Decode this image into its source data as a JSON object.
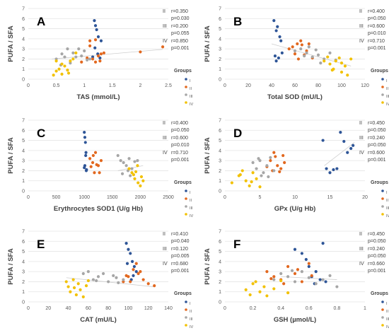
{
  "figure": {
    "colors": {
      "I": "#2e5597",
      "II": "#e2681f",
      "III": "#a6a6a6",
      "IV": "#f2c100"
    },
    "legend_title": "Groups"
  },
  "chart_data": [
    {
      "type": "scatter",
      "letter": "A",
      "xlabel": "TAS (mmol/L)",
      "ylabel": "PUFA / SFA",
      "xlim": [
        0,
        2.5
      ],
      "xticks": [
        0,
        0.5,
        1,
        1.5,
        2,
        2.5
      ],
      "ylim": [
        0,
        7
      ],
      "yticks": [
        0,
        1,
        2,
        3,
        4,
        5,
        6,
        7
      ],
      "stats": [
        {
          "group": "II",
          "r": "r=0.350",
          "p": "p=0.030"
        },
        {
          "group": "III",
          "r": "r=0.200",
          "p": "p=0.055"
        },
        {
          "group": "IV",
          "r": "r=0.850",
          "p": "p=0.001"
        }
      ],
      "trend": [
        [
          0.42,
          2.0
        ],
        [
          2.4,
          2.95
        ]
      ],
      "series": [
        {
          "name": "I",
          "x": [
            1.18,
            1.2,
            1.22,
            1.25,
            1.15,
            1.28,
            1.3,
            1.19,
            1.24
          ],
          "y": [
            5.8,
            5.3,
            4.9,
            4.2,
            2.2,
            2.1,
            3.8,
            3.1,
            2.5
          ]
        },
        {
          "name": "II",
          "x": [
            0.95,
            1.05,
            1.1,
            1.15,
            1.2,
            1.25,
            1.3,
            1.35,
            1.1,
            1.2,
            2.0,
            2.4,
            1.28
          ],
          "y": [
            1.7,
            2.1,
            3.8,
            2.0,
            1.7,
            2.3,
            2.5,
            2.6,
            3.3,
            3.9,
            2.7,
            3.2,
            1.8
          ]
        },
        {
          "name": "III",
          "x": [
            0.5,
            0.6,
            0.65,
            0.7,
            0.8,
            0.85,
            0.9,
            1.0,
            1.05,
            0.75,
            0.95,
            1.1,
            0.58
          ],
          "y": [
            2.0,
            2.5,
            2.2,
            3.0,
            2.6,
            2.2,
            3.0,
            2.8,
            1.9,
            1.6,
            2.3,
            2.0,
            1.4
          ]
        },
        {
          "name": "IV",
          "x": [
            0.45,
            0.5,
            0.55,
            0.6,
            0.65,
            0.7,
            0.75,
            0.8,
            0.6,
            0.5,
            0.72,
            0.85
          ],
          "y": [
            0.4,
            0.8,
            1.0,
            0.5,
            1.3,
            0.9,
            1.8,
            2.0,
            1.5,
            1.8,
            0.6,
            2.6
          ]
        }
      ]
    },
    {
      "type": "scatter",
      "letter": "B",
      "xlabel": "Total SOD (mU/L)",
      "ylabel": "PUFA / SFA",
      "xlim": [
        0,
        120
      ],
      "xticks": [
        0,
        20,
        40,
        60,
        80,
        100,
        120
      ],
      "ylim": [
        0,
        7
      ],
      "yticks": [
        0,
        1,
        2,
        3,
        4,
        5,
        6,
        7
      ],
      "stats": [
        {
          "group": "II",
          "r": "r=0.400",
          "p": "p=0.050"
        },
        {
          "group": "III",
          "r": "r=0.600",
          "p": "p=0.010"
        },
        {
          "group": "IV",
          "r": "r=0.710",
          "p": "p=0.001"
        }
      ],
      "trend": [
        [
          40,
          3.5
        ],
        [
          108,
          1.3
        ]
      ],
      "series": [
        {
          "name": "I",
          "x": [
            42,
            45,
            44,
            47,
            48,
            43,
            46,
            44,
            49
          ],
          "y": [
            5.8,
            5.2,
            4.8,
            4.2,
            3.8,
            2.3,
            2.1,
            1.8,
            2.6
          ]
        },
        {
          "name": "II",
          "x": [
            55,
            60,
            62,
            65,
            68,
            70,
            58,
            63,
            72,
            75,
            66
          ],
          "y": [
            3.0,
            2.5,
            3.5,
            3.8,
            2.4,
            2.8,
            3.2,
            2.0,
            3.5,
            2.1,
            3.4
          ]
        },
        {
          "name": "III",
          "x": [
            60,
            65,
            70,
            72,
            75,
            78,
            80,
            85,
            90,
            95,
            68,
            82
          ],
          "y": [
            2.8,
            3.0,
            2.6,
            3.2,
            2.2,
            2.9,
            2.4,
            2.0,
            2.6,
            1.9,
            2.3,
            1.6
          ]
        },
        {
          "name": "IV",
          "x": [
            85,
            88,
            90,
            93,
            95,
            98,
            100,
            103,
            105,
            108,
            92,
            100
          ],
          "y": [
            1.8,
            2.2,
            1.5,
            1.0,
            1.8,
            2.1,
            0.7,
            1.3,
            0.4,
            2.0,
            0.9,
            1.6
          ]
        }
      ]
    },
    {
      "type": "scatter",
      "letter": "C",
      "xlabel": "Erythrocytes SOD1 (U/g Hb)",
      "ylabel": "PUFA / SFA",
      "xlim": [
        0,
        2500
      ],
      "xticks": [
        0,
        500,
        1000,
        1500,
        2000,
        2500
      ],
      "ylim": [
        0,
        7
      ],
      "yticks": [
        0,
        1,
        2,
        3,
        4,
        5,
        6,
        7
      ],
      "stats": [
        {
          "group": "II",
          "r": "r=0.400",
          "p": "p=0.050"
        },
        {
          "group": "III",
          "r": "r=0.600",
          "p": "p=0.010"
        },
        {
          "group": "IV",
          "r": "r=0.710",
          "p": "p=0.001"
        }
      ],
      "trend": [
        [
          1600,
          2.0
        ],
        [
          2050,
          2.5
        ]
      ],
      "series": [
        {
          "name": "I",
          "x": [
            1000,
            1010,
            1020,
            1030,
            1000,
            1040,
            1010,
            1025,
            1035
          ],
          "y": [
            5.8,
            5.3,
            4.8,
            3.8,
            2.3,
            2.1,
            2.5,
            3.5,
            2.0
          ]
        },
        {
          "name": "II",
          "x": [
            1100,
            1150,
            1200,
            1250,
            1300,
            1180,
            1220,
            1120,
            1270,
            1160
          ],
          "y": [
            3.2,
            2.8,
            3.8,
            2.5,
            3.0,
            1.8,
            2.6,
            2.4,
            1.8,
            3.5
          ]
        },
        {
          "name": "III",
          "x": [
            1600,
            1650,
            1700,
            1750,
            1800,
            1850,
            1900,
            1950,
            1680,
            1780,
            1820
          ],
          "y": [
            3.5,
            3.0,
            2.8,
            2.5,
            3.2,
            2.2,
            2.9,
            3.0,
            1.7,
            2.0,
            1.5
          ]
        },
        {
          "name": "IV",
          "x": [
            1800,
            1850,
            1900,
            1950,
            2000,
            2050,
            1880,
            1960,
            2020,
            1920
          ],
          "y": [
            2.2,
            1.8,
            1.2,
            2.5,
            0.5,
            1.0,
            1.6,
            0.8,
            1.4,
            1.9
          ]
        }
      ]
    },
    {
      "type": "scatter",
      "letter": "D",
      "xlabel": "GPx  (U/g Hb)",
      "ylabel": "PUFA / SFA",
      "xlim": [
        0,
        20
      ],
      "xticks": [
        0,
        5,
        10,
        15,
        20
      ],
      "ylim": [
        0,
        7
      ],
      "yticks": [
        0,
        1,
        2,
        3,
        4,
        5,
        6,
        7
      ],
      "stats": [
        {
          "group": "II",
          "r": "r=0.450",
          "p": "p=0.050"
        },
        {
          "group": "III",
          "r": "r=0.240",
          "p": "p=0.050"
        },
        {
          "group": "IV",
          "r": "r=0.600",
          "p": "p=0.001"
        }
      ],
      "trend": [
        [
          14.2,
          2.5
        ],
        [
          18.5,
          4.8
        ]
      ],
      "series": [
        {
          "name": "I",
          "x": [
            14,
            14.5,
            15,
            15.5,
            16,
            16.5,
            17,
            17.5,
            18,
            18.3
          ],
          "y": [
            5.0,
            2.2,
            1.8,
            2.1,
            2.2,
            5.8,
            4.9,
            3.8,
            4.2,
            4.5
          ]
        },
        {
          "name": "II",
          "x": [
            6,
            6.5,
            7,
            7.5,
            8,
            8.5,
            7.2,
            7.8,
            6.8,
            8.3
          ],
          "y": [
            2.4,
            3.0,
            3.8,
            2.5,
            2.2,
            2.8,
            3.4,
            1.9,
            2.0,
            3.5
          ]
        },
        {
          "name": "III",
          "x": [
            4,
            4.5,
            5,
            5.5,
            6,
            6.5,
            7,
            5.2,
            6.2,
            4.8
          ],
          "y": [
            2.8,
            2.2,
            3.0,
            1.8,
            2.5,
            3.3,
            2.0,
            1.5,
            1.4,
            3.2
          ]
        },
        {
          "name": "IV",
          "x": [
            1,
            2,
            2.5,
            3,
            3.5,
            4,
            4.5,
            5,
            2.2,
            3.8
          ],
          "y": [
            0.8,
            1.5,
            2.0,
            1.0,
            0.5,
            1.8,
            1.2,
            0.4,
            1.6,
            0.9
          ]
        }
      ]
    },
    {
      "type": "scatter",
      "letter": "E",
      "xlabel": "CAT (mU/L)",
      "ylabel": "PUFA / SFA",
      "xlim": [
        0,
        140
      ],
      "xticks": [
        0,
        20,
        40,
        60,
        80,
        100,
        120,
        140
      ],
      "ylim": [
        0,
        7
      ],
      "yticks": [
        0,
        1,
        2,
        3,
        4,
        5,
        6,
        7
      ],
      "stats": [
        {
          "group": "II",
          "r": "r=0.410",
          "p": "p=0.040"
        },
        {
          "group": "III",
          "r": "r=0.120",
          "p": "p=0.005"
        },
        {
          "group": "IV",
          "r": "r=0.680",
          "p": "p=0.001"
        }
      ],
      "trend": [
        [
          38,
          2.4
        ],
        [
          125,
          1.5
        ]
      ],
      "series": [
        {
          "name": "I",
          "x": [
            98,
            100,
            102,
            104,
            106,
            108,
            103,
            99,
            105
          ],
          "y": [
            5.8,
            5.2,
            4.8,
            4.0,
            3.5,
            3.0,
            2.2,
            3.8,
            2.6
          ]
        },
        {
          "name": "II",
          "x": [
            95,
            100,
            105,
            110,
            115,
            120,
            108,
            102,
            112,
            126,
            98
          ],
          "y": [
            2.0,
            2.5,
            3.2,
            2.8,
            2.2,
            1.8,
            3.8,
            2.0,
            3.0,
            1.6,
            2.6
          ]
        },
        {
          "name": "III",
          "x": [
            55,
            60,
            65,
            70,
            75,
            80,
            85,
            90,
            95,
            68,
            88
          ],
          "y": [
            2.8,
            3.0,
            2.2,
            2.5,
            2.8,
            2.0,
            2.6,
            1.9,
            2.2,
            2.1,
            2.4
          ]
        },
        {
          "name": "IV",
          "x": [
            38,
            40,
            42,
            45,
            48,
            50,
            52,
            55,
            58,
            60,
            46
          ],
          "y": [
            2.0,
            1.5,
            1.0,
            2.2,
            0.7,
            1.8,
            1.2,
            0.5,
            1.6,
            2.1,
            1.4
          ]
        }
      ]
    },
    {
      "type": "scatter",
      "letter": "F",
      "xlabel": "GSH (µmol/L)",
      "ylabel": "PUFA / SFA",
      "xlim": [
        0,
        1
      ],
      "xticks": [
        0,
        0.2,
        0.4,
        0.6,
        0.8,
        1
      ],
      "ylim": [
        0,
        7
      ],
      "yticks": [
        0,
        1,
        2,
        3,
        4,
        5,
        6,
        7
      ],
      "stats": [
        {
          "group": "II",
          "r": "r=0.450",
          "p": "p=0.050"
        },
        {
          "group": "III",
          "r": "r=0.240",
          "p": "p=0.050"
        },
        {
          "group": "IV",
          "r": "r=0.660",
          "p": "p=0.001"
        }
      ],
      "trend": [
        [
          0.4,
          2.5
        ],
        [
          0.8,
          2.2
        ]
      ],
      "series": [
        {
          "name": "I",
          "x": [
            0.5,
            0.55,
            0.6,
            0.62,
            0.65,
            0.68,
            0.7,
            0.72,
            0.58,
            0.64
          ],
          "y": [
            5.2,
            4.8,
            3.5,
            2.5,
            3.0,
            2.2,
            5.8,
            2.0,
            4.2,
            1.8
          ]
        },
        {
          "name": "II",
          "x": [
            0.3,
            0.35,
            0.4,
            0.45,
            0.5,
            0.55,
            0.6,
            0.42,
            0.52,
            0.33,
            0.62
          ],
          "y": [
            3.0,
            2.5,
            2.2,
            3.5,
            2.8,
            2.0,
            3.8,
            1.8,
            3.2,
            2.3,
            2.6
          ]
        },
        {
          "name": "III",
          "x": [
            0.35,
            0.4,
            0.45,
            0.5,
            0.55,
            0.6,
            0.65,
            0.7,
            0.75,
            0.8,
            0.48
          ],
          "y": [
            2.2,
            2.8,
            2.5,
            2.0,
            3.0,
            2.4,
            1.8,
            2.2,
            2.6,
            1.5,
            3.1
          ]
        },
        {
          "name": "IV",
          "x": [
            0.15,
            0.18,
            0.2,
            0.22,
            0.25,
            0.28,
            0.3,
            0.35,
            0.4,
            0.45
          ],
          "y": [
            1.2,
            0.7,
            1.8,
            2.0,
            1.0,
            1.5,
            0.6,
            1.3,
            2.1,
            0.9
          ]
        }
      ]
    }
  ]
}
